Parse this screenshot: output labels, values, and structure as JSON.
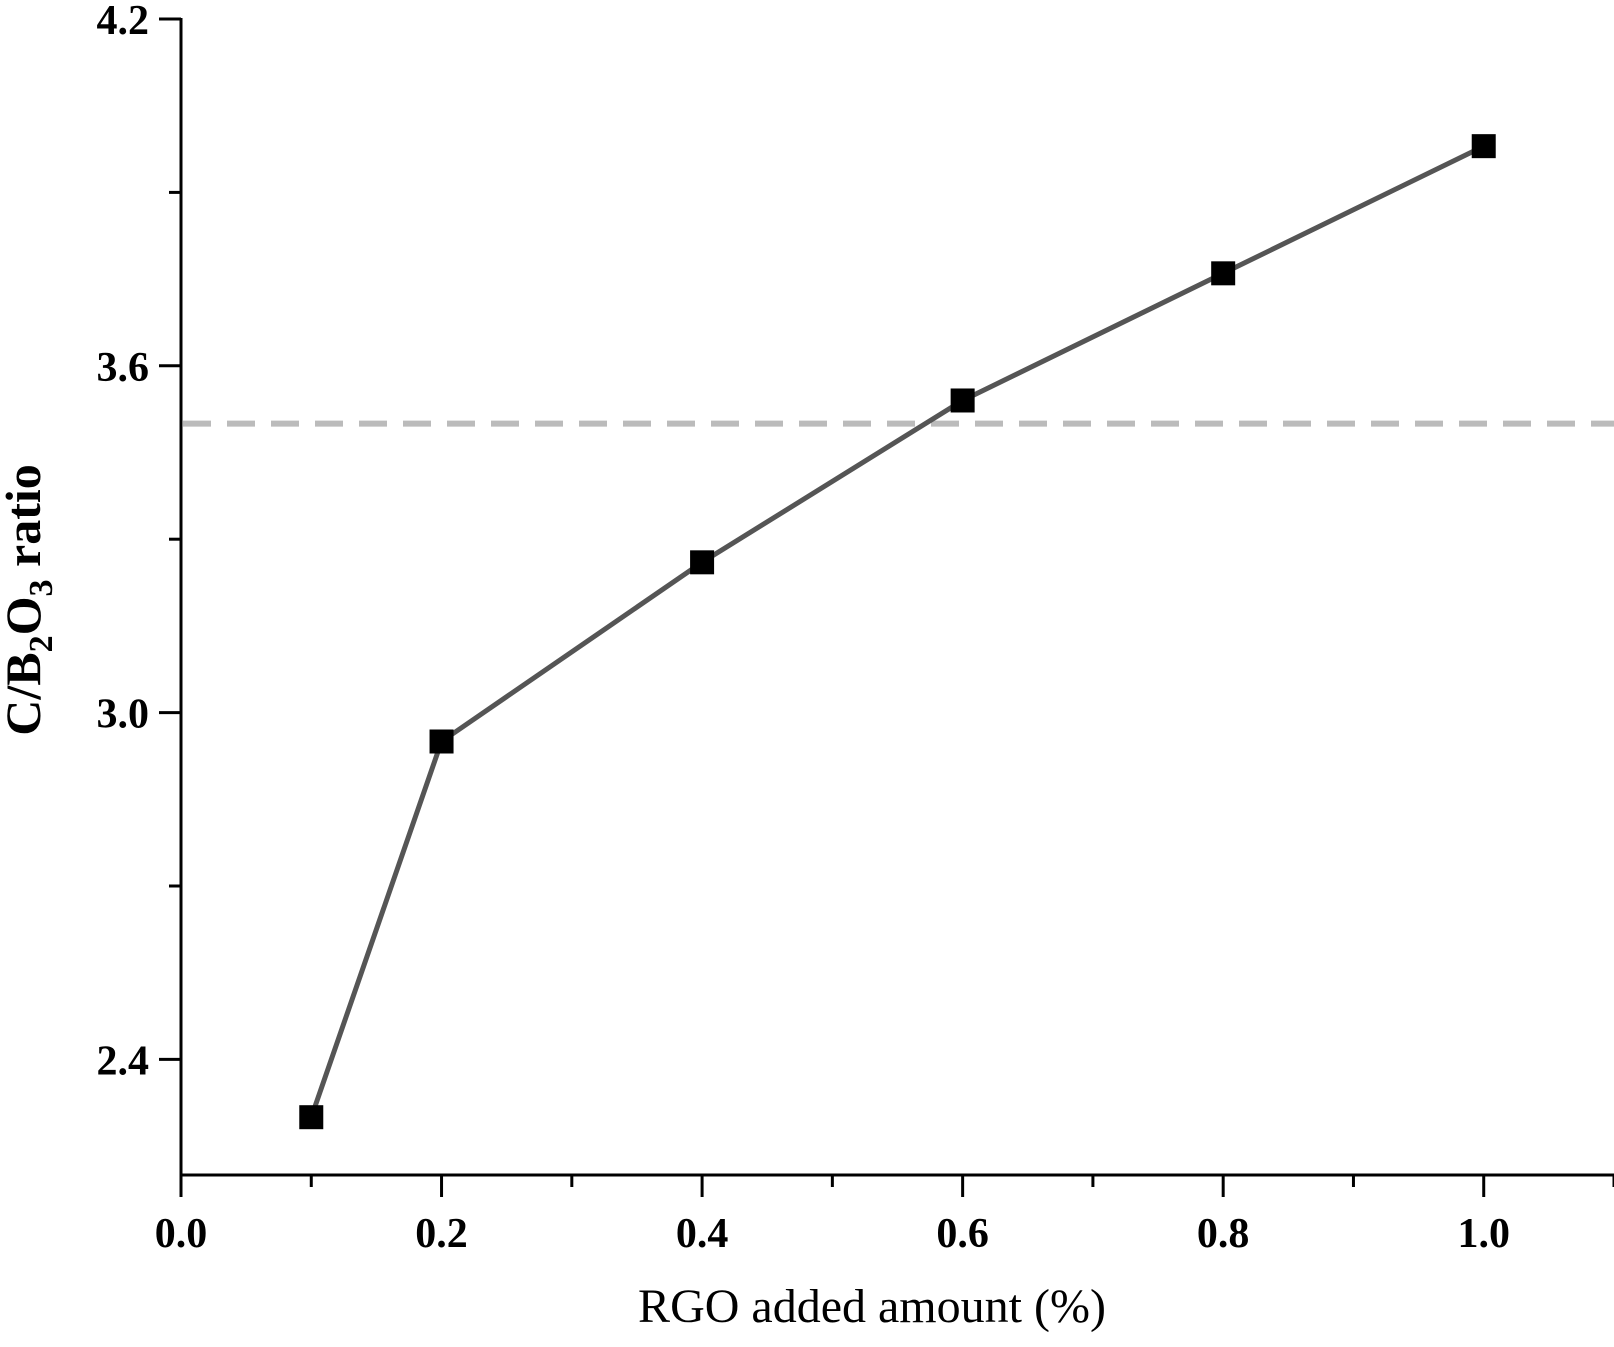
{
  "chart_data": {
    "type": "line",
    "xlabel": "RGO added amount (%)",
    "ylabel": {
      "parts": [
        {
          "text": "C/B",
          "sub": false
        },
        {
          "text": "2",
          "sub": true
        },
        {
          "text": "O",
          "sub": false
        },
        {
          "text": "3",
          "sub": true
        },
        {
          "text": " ratio",
          "sub": false
        }
      ]
    },
    "xlim": [
      0.0,
      1.1
    ],
    "ylim": [
      2.2,
      4.2
    ],
    "x_ticks": [
      "0.0",
      "0.2",
      "0.4",
      "0.6",
      "0.8",
      "1.0"
    ],
    "y_ticks": [
      "2.4",
      "3.0",
      "3.6",
      "4.2"
    ],
    "x_minor_ticks": [
      0.1,
      0.3,
      0.5,
      0.7,
      0.9,
      1.1
    ],
    "y_minor_ticks": [
      2.7,
      3.3,
      3.9
    ],
    "series": [
      {
        "x": [
          0.1,
          0.2,
          0.4,
          0.6,
          0.8,
          1.0
        ],
        "y": [
          2.3,
          2.95,
          3.26,
          3.54,
          3.76,
          3.98
        ],
        "line_color": "#555555",
        "marker": "square",
        "marker_color": "#000000"
      }
    ],
    "reference_line": {
      "y": 3.5,
      "style": "dashed",
      "color": "#bbbbbb"
    },
    "grid": false,
    "legend": "none"
  }
}
